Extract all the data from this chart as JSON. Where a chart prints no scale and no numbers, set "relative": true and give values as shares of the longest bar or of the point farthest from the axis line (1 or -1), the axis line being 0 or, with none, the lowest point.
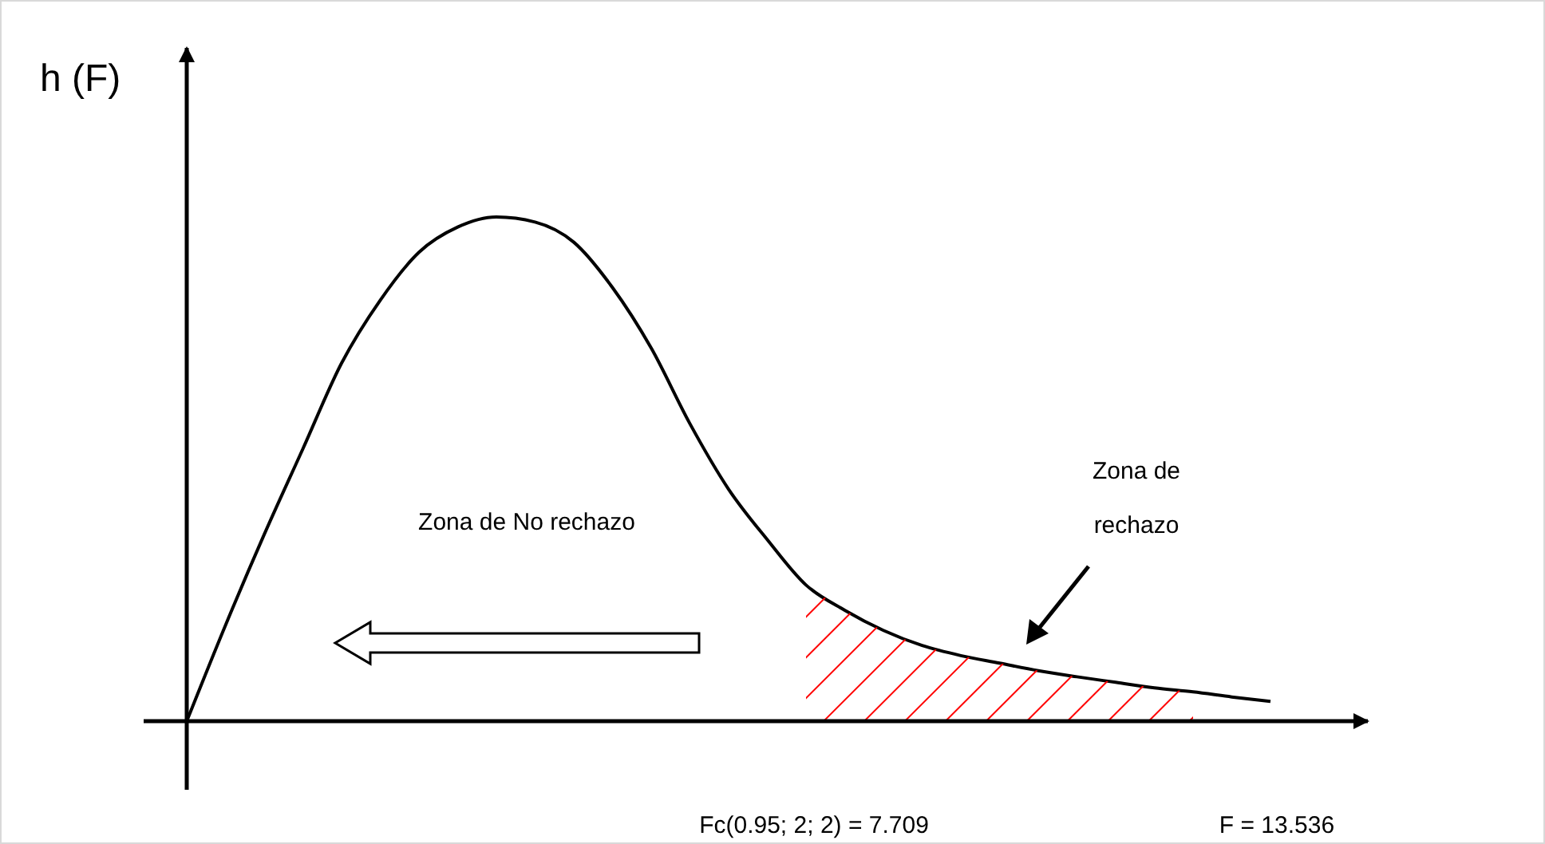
{
  "chart_data": {
    "type": "line",
    "relative": true,
    "ylabel": "h (F)",
    "categories": [
      null,
      null,
      null,
      null,
      null,
      null,
      null,
      null,
      null,
      null,
      null,
      null,
      null,
      null,
      null,
      null,
      null,
      null,
      null,
      null,
      null,
      null,
      null,
      null,
      null,
      null,
      null,
      null,
      null
    ],
    "series": [
      {
        "color": "#000000",
        "values": [
          0,
          0.19,
          0.37,
          0.54,
          0.71,
          0.835,
          0.93,
          0.98,
          1,
          0.99,
          0.95,
          0.86,
          0.74,
          0.59,
          0.46,
          0.36,
          0.27,
          0.22,
          0.18,
          0.15,
          0.13,
          0.115,
          0.1,
          0.088,
          0.077,
          0.066,
          0.058,
          0.048,
          0.039
        ]
      },
      {
        "type": "area",
        "color": "#ff0000",
        "values": [
          null,
          null,
          null,
          null,
          null,
          null,
          null,
          null,
          null,
          null,
          null,
          null,
          null,
          null,
          null,
          null,
          0.27,
          0.22,
          0.18,
          0.15,
          0.13,
          0.115,
          0.1,
          0.088,
          0.077,
          0.066,
          0.058,
          null,
          null
        ]
      }
    ],
    "annotations": [
      "Zona de No rechazo",
      "Zona de\nrechazo",
      "Fc(0.95; 2; 2) = 7.709",
      "F = 13.536"
    ],
    "grid": false,
    "line_style": "solid"
  }
}
